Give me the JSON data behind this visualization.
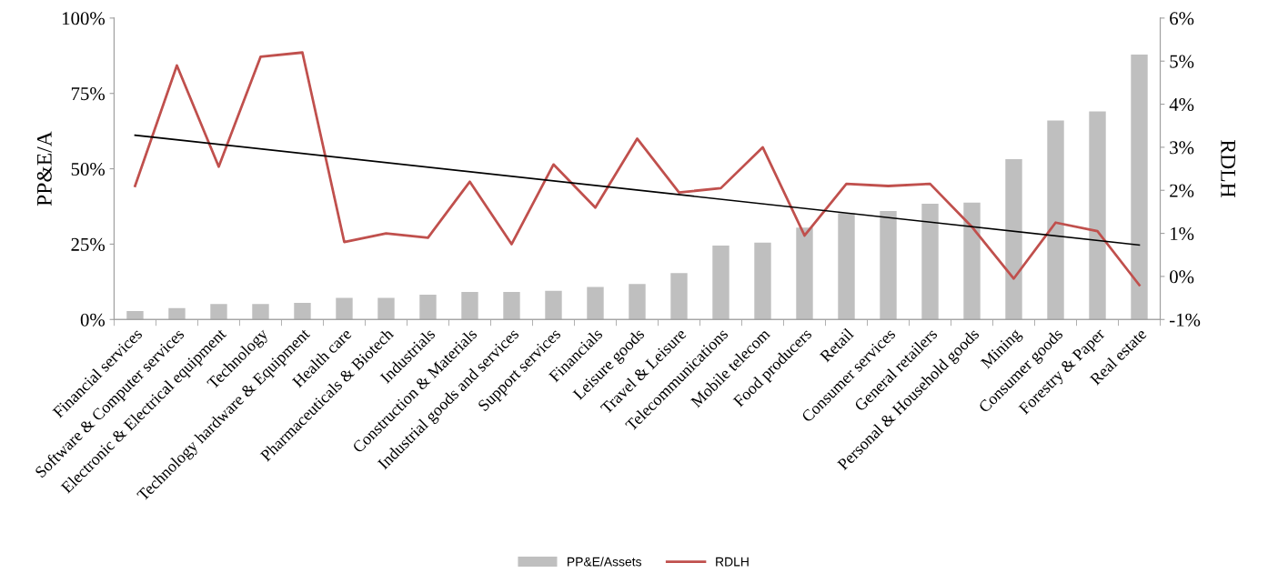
{
  "chart_data": {
    "type": "bar",
    "categories": [
      "Financial services",
      "Software & Computer services",
      "Electronic & Electrical equipment",
      "Technology",
      "Technology hardware & Equipment",
      "Health care",
      "Pharmaceuticals & Biotech",
      "Industrials",
      "Construction & Materials",
      "Industrial goods and services",
      "Support services",
      "Financials",
      "Leisure goods",
      "Travel & Leisure",
      "Telecommunications",
      "Mobile telecom",
      "Food producers",
      "Retail",
      "Consumer services",
      "General retailers",
      "Personal & Household goods",
      "Mining",
      "Consumer goods",
      "Forestry & Paper",
      "Real estate"
    ],
    "ylabel": "PP&E/A",
    "y2label": "RDLH",
    "ylim": [
      0,
      100
    ],
    "yticks": [
      {
        "value": 0,
        "label": "0%"
      },
      {
        "value": 25,
        "label": "25%"
      },
      {
        "value": 50,
        "label": "50%"
      },
      {
        "value": 75,
        "label": "75%"
      },
      {
        "value": 100,
        "label": "100%"
      }
    ],
    "y2lim": [
      -1,
      6
    ],
    "y2ticks": [
      {
        "value": -1,
        "label": "-1%"
      },
      {
        "value": 0,
        "label": "0%"
      },
      {
        "value": 1,
        "label": "1%"
      },
      {
        "value": 2,
        "label": "2%"
      },
      {
        "value": 3,
        "label": "3%"
      },
      {
        "value": 4,
        "label": "4%"
      },
      {
        "value": 5,
        "label": "5%"
      },
      {
        "value": 6,
        "label": "6%"
      }
    ],
    "series": [
      {
        "name": "PP&E/Assets",
        "color": "#bfbfbf",
        "values": [
          2.8,
          3.8,
          5.1,
          5.1,
          5.5,
          7.2,
          7.2,
          8.2,
          9.1,
          9.1,
          9.5,
          10.8,
          11.8,
          15.4,
          24.5,
          25.5,
          30.5,
          35.3,
          36.0,
          38.4,
          38.8,
          53.2,
          66.0,
          69.0,
          87.9
        ]
      },
      {
        "name": "RDLH",
        "type": "line",
        "axis": "y2",
        "color": "#c0504d",
        "values": [
          2.1,
          4.9,
          2.55,
          5.1,
          5.2,
          0.8,
          1.0,
          0.9,
          2.2,
          0.75,
          2.6,
          1.6,
          3.2,
          1.95,
          2.05,
          3.0,
          0.95,
          2.15,
          2.1,
          2.15,
          1.15,
          -0.05,
          1.25,
          1.05,
          -0.2
        ]
      },
      {
        "type": "line",
        "axis": "y2",
        "color": "#000000",
        "x": [
          "Financial services",
          "Real estate"
        ],
        "values": [
          3.28,
          0.73
        ]
      }
    ],
    "legend": "bottom",
    "grid": false
  }
}
